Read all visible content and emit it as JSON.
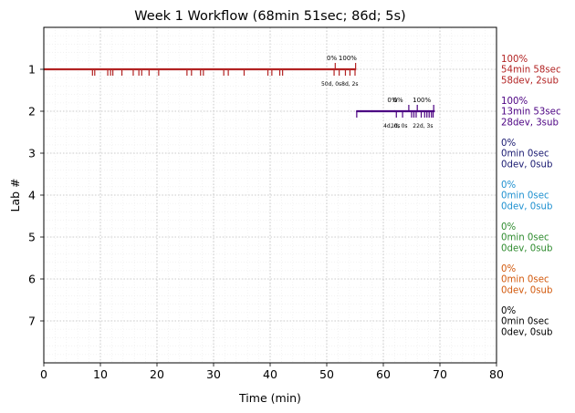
{
  "chart_data": {
    "type": "line",
    "title": "Week 1 Workflow (68min 51sec; 86d; 5s)",
    "xlabel": "Time (min)",
    "ylabel": "Lab #",
    "xlim": [
      0,
      80
    ],
    "ylim": [
      8,
      0
    ],
    "x_ticks": [
      0,
      10,
      20,
      30,
      40,
      50,
      60,
      70,
      80
    ],
    "y_ticks": [
      1,
      2,
      3,
      4,
      5,
      6,
      7
    ],
    "grid": true,
    "series": [
      {
        "lab": 1,
        "color": "#b22222",
        "start": 0,
        "end": 55.2,
        "ticks_below": [
          8.6,
          9.0,
          11.3,
          11.8,
          12.2,
          13.8,
          15.8,
          16.8,
          17.3,
          18.6,
          20.3,
          25.3,
          26.1,
          27.7,
          28.2,
          31.8,
          32.6,
          35.4,
          39.6,
          40.3,
          41.7,
          42.2,
          51.3,
          52.2,
          53.3,
          54.1,
          55.0
        ],
        "ticks_above": [
          51.5,
          55.1
        ],
        "pct_labels": [
          {
            "x": 50.9,
            "text": "0%"
          },
          {
            "x": 53.7,
            "text": "100%"
          }
        ],
        "sub_labels": [
          {
            "x": 52.3,
            "text": "50d, 0s8d, 2s"
          }
        ],
        "summary": [
          "100%",
          "54min 58sec",
          "58dev, 2sub"
        ]
      },
      {
        "lab": 2,
        "color": "#4b0082",
        "start": 55.2,
        "end": 69.1,
        "ticks_below": [
          55.3,
          62.3,
          63.4,
          65.0,
          65.4,
          65.8,
          66.7,
          67.3,
          67.7,
          68.1,
          68.5,
          68.8
        ],
        "ticks_above": [
          64.5,
          66.0,
          68.9
        ],
        "pct_labels": [
          {
            "x": 61.6,
            "text": "0%"
          },
          {
            "x": 62.6,
            "text": "0%"
          },
          {
            "x": 66.8,
            "text": "100%"
          }
        ],
        "sub_labels": [
          {
            "x": 61.5,
            "text": "4d, 0s"
          },
          {
            "x": 62.8,
            "text": "1d, 0s"
          },
          {
            "x": 67.0,
            "text": "22d, 3s"
          }
        ],
        "summary": [
          "100%",
          "13min 53sec",
          "28dev, 3sub"
        ]
      },
      {
        "lab": 3,
        "color": "#191970",
        "summary": [
          "0%",
          "0min 0sec",
          "0dev, 0sub"
        ]
      },
      {
        "lab": 4,
        "color": "#1e90d0",
        "summary": [
          "0%",
          "0min 0sec",
          "0dev, 0sub"
        ]
      },
      {
        "lab": 5,
        "color": "#2e8b2e",
        "summary": [
          "0%",
          "0min 0sec",
          "0dev, 0sub"
        ]
      },
      {
        "lab": 6,
        "color": "#d2580b",
        "summary": [
          "0%",
          "0min 0sec",
          "0dev, 0sub"
        ]
      },
      {
        "lab": 7,
        "color": "#000000",
        "summary": [
          "0%",
          "0min 0sec",
          "0dev, 0sub"
        ]
      }
    ]
  }
}
